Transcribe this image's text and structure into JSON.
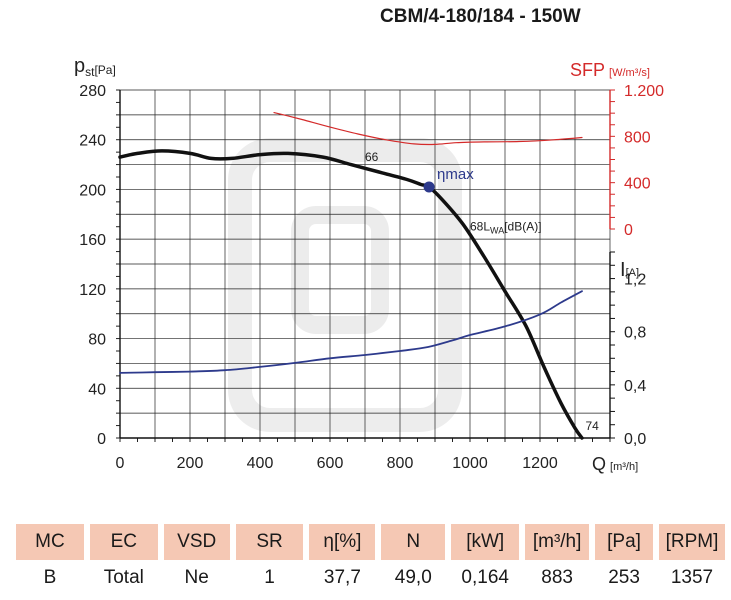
{
  "title": "CBM/4-180/184 - 150W",
  "chart_data": {
    "type": "line",
    "x_axis": {
      "label": "Q",
      "unit": "[m³/h]",
      "range": [
        0,
        1400
      ],
      "ticks": [
        "0",
        "200",
        "400",
        "600",
        "800",
        "1000",
        "1200"
      ]
    },
    "y_axis_left": {
      "label": "p",
      "sub": "st",
      "unit": "[Pa]",
      "range": [
        0,
        280
      ],
      "ticks": [
        "0",
        "40",
        "80",
        "120",
        "160",
        "200",
        "240",
        "280"
      ]
    },
    "y_axis_sfp": {
      "label": "SFP",
      "unit": "[W/m³/s]",
      "range": [
        0,
        1200
      ],
      "ticks": [
        "0",
        "400",
        "800",
        "1.200"
      ],
      "color": "#d42a2a"
    },
    "y_axis_current": {
      "label": "I",
      "unit": "[A]",
      "range": [
        0,
        1.4
      ],
      "ticks": [
        "0,0",
        "0,4",
        "0,8",
        "1,2"
      ]
    },
    "series": [
      {
        "kind": "pressure",
        "color": "#111111",
        "points": [
          [
            0,
            226
          ],
          [
            50,
            229
          ],
          [
            120,
            231
          ],
          [
            200,
            229
          ],
          [
            260,
            225
          ],
          [
            320,
            225
          ],
          [
            400,
            228
          ],
          [
            480,
            229
          ],
          [
            580,
            226
          ],
          [
            660,
            220
          ],
          [
            740,
            214
          ],
          [
            820,
            208
          ],
          [
            860,
            204
          ],
          [
            883,
            202
          ],
          [
            920,
            192
          ],
          [
            980,
            172
          ],
          [
            1040,
            146
          ],
          [
            1100,
            118
          ],
          [
            1160,
            90
          ],
          [
            1210,
            58
          ],
          [
            1260,
            28
          ],
          [
            1300,
            8
          ],
          [
            1320,
            0
          ]
        ]
      },
      {
        "kind": "sfp",
        "color": "#d42a2a",
        "points": [
          [
            440,
            1005
          ],
          [
            520,
            945
          ],
          [
            600,
            880
          ],
          [
            680,
            820
          ],
          [
            760,
            770
          ],
          [
            840,
            735
          ],
          [
            900,
            730
          ],
          [
            960,
            745
          ],
          [
            1040,
            752
          ],
          [
            1140,
            755
          ],
          [
            1240,
            770
          ],
          [
            1320,
            790
          ]
        ]
      },
      {
        "kind": "current",
        "color": "#2d3a8c",
        "points": [
          [
            0,
            0.49
          ],
          [
            100,
            0.495
          ],
          [
            200,
            0.5
          ],
          [
            300,
            0.51
          ],
          [
            400,
            0.535
          ],
          [
            500,
            0.565
          ],
          [
            600,
            0.6
          ],
          [
            700,
            0.625
          ],
          [
            800,
            0.655
          ],
          [
            880,
            0.685
          ],
          [
            950,
            0.735
          ],
          [
            1000,
            0.775
          ],
          [
            1100,
            0.84
          ],
          [
            1200,
            0.93
          ],
          [
            1260,
            1.02
          ],
          [
            1320,
            1.105
          ]
        ]
      }
    ],
    "annotations": [
      {
        "text": "66",
        "x": 700,
        "y": 223
      },
      {
        "text": "68L",
        "wa": "WA",
        "rest": "[dB(A)]",
        "x": 1000,
        "y": 167
      },
      {
        "text": "74",
        "x": 1330,
        "y": 5
      }
    ],
    "marker": {
      "label": "ηmax",
      "x": 883,
      "y": 202,
      "color": "#2d3a8c"
    },
    "grid": true
  },
  "table": {
    "headers": [
      "MC",
      "EC",
      "VSD",
      "SR",
      "η[%]",
      "N",
      "[kW]",
      "[m³/h]",
      "[Pa]",
      "[RPM]"
    ],
    "values": [
      "B",
      "Total",
      "Ne",
      "1",
      "37,7",
      "49,0",
      "0,164",
      "883",
      "253",
      "1357"
    ]
  }
}
